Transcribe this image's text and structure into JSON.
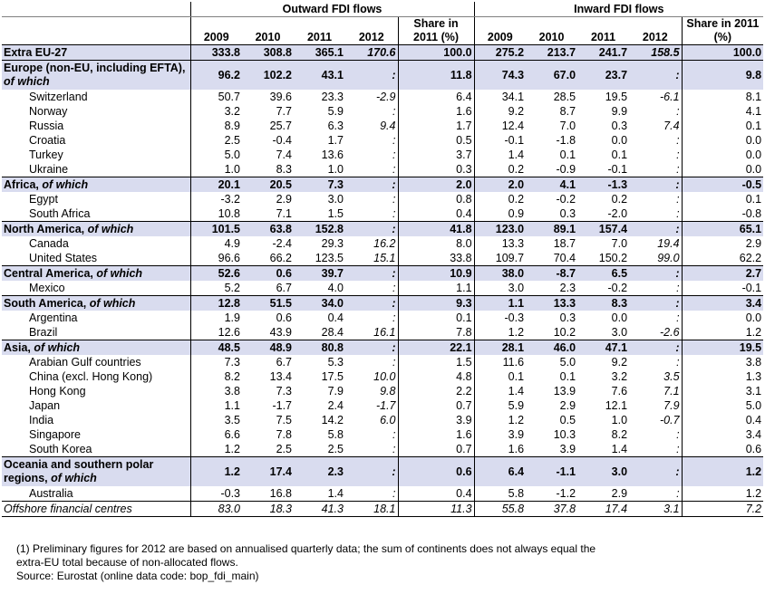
{
  "header": {
    "outward_group": "Outward FDI flows",
    "inward_group": "Inward FDI flows",
    "years": [
      "2009",
      "2010",
      "2011",
      "2012"
    ],
    "share_label": "Share in 2011 (%)"
  },
  "rows": [
    {
      "label": "Extra EU-27",
      "type": "total",
      "out": [
        "333.8",
        "308.8",
        "365.1",
        "170.6"
      ],
      "out_share": "100.0",
      "in": [
        "275.2",
        "213.7",
        "241.7",
        "158.5"
      ],
      "in_share": "100.0"
    },
    {
      "label": "Europe (non-EU, including EFTA), ",
      "suffix": "of which",
      "type": "band-tall",
      "out": [
        "96.2",
        "102.2",
        "43.1",
        ":"
      ],
      "out_share": "11.8",
      "in": [
        "74.3",
        "67.0",
        "23.7",
        ":"
      ],
      "in_share": "9.8"
    },
    {
      "label": "Switzerland",
      "type": "sub",
      "out": [
        "50.7",
        "39.6",
        "23.3",
        "-2.9"
      ],
      "out_share": "6.4",
      "in": [
        "34.1",
        "28.5",
        "19.5",
        "-6.1"
      ],
      "in_share": "8.1"
    },
    {
      "label": "Norway",
      "type": "sub",
      "out": [
        "3.2",
        "7.7",
        "5.9",
        ":"
      ],
      "out_share": "1.6",
      "in": [
        "9.2",
        "8.7",
        "9.9",
        ":"
      ],
      "in_share": "4.1"
    },
    {
      "label": "Russia",
      "type": "sub",
      "out": [
        "8.9",
        "25.7",
        "6.3",
        "9.4"
      ],
      "out_share": "1.7",
      "in": [
        "12.4",
        "7.0",
        "0.3",
        "7.4"
      ],
      "in_share": "0.1"
    },
    {
      "label": "Croatia",
      "type": "sub",
      "out": [
        "2.5",
        "-0.4",
        "1.7",
        ":"
      ],
      "out_share": "0.5",
      "in": [
        "-0.1",
        "-1.8",
        "0.0",
        ":"
      ],
      "in_share": "0.0"
    },
    {
      "label": "Turkey",
      "type": "sub",
      "out": [
        "5.0",
        "7.4",
        "13.6",
        ":"
      ],
      "out_share": "3.7",
      "in": [
        "1.4",
        "0.1",
        "0.1",
        ":"
      ],
      "in_share": "0.0"
    },
    {
      "label": "Ukraine",
      "type": "sub",
      "out": [
        "1.0",
        "8.3",
        "1.0",
        ":"
      ],
      "out_share": "0.3",
      "in": [
        "0.2",
        "-0.9",
        "-0.1",
        ":"
      ],
      "in_share": "0.0"
    },
    {
      "label": "Africa, ",
      "suffix": "of which",
      "type": "band",
      "out": [
        "20.1",
        "20.5",
        "7.3",
        ":"
      ],
      "out_share": "2.0",
      "in": [
        "2.0",
        "4.1",
        "-1.3",
        ":"
      ],
      "in_share": "-0.5"
    },
    {
      "label": "Egypt",
      "type": "sub",
      "out": [
        "-3.2",
        "2.9",
        "3.0",
        ":"
      ],
      "out_share": "0.8",
      "in": [
        "0.2",
        "-0.2",
        "0.2",
        ":"
      ],
      "in_share": "0.1"
    },
    {
      "label": "South Africa",
      "type": "sub",
      "out": [
        "10.8",
        "7.1",
        "1.5",
        ":"
      ],
      "out_share": "0.4",
      "in": [
        "0.9",
        "0.3",
        "-2.0",
        ":"
      ],
      "in_share": "-0.8"
    },
    {
      "label": "North America, ",
      "suffix": "of which",
      "type": "band",
      "out": [
        "101.5",
        "63.8",
        "152.8",
        ":"
      ],
      "out_share": "41.8",
      "in": [
        "123.0",
        "89.1",
        "157.4",
        ":"
      ],
      "in_share": "65.1"
    },
    {
      "label": "Canada",
      "type": "sub",
      "out": [
        "4.9",
        "-2.4",
        "29.3",
        "16.2"
      ],
      "out_share": "8.0",
      "in": [
        "13.3",
        "18.7",
        "7.0",
        "19.4"
      ],
      "in_share": "2.9"
    },
    {
      "label": "United States",
      "type": "sub",
      "out": [
        "96.6",
        "66.2",
        "123.5",
        "15.1"
      ],
      "out_share": "33.8",
      "in": [
        "109.7",
        "70.4",
        "150.2",
        "99.0"
      ],
      "in_share": "62.2"
    },
    {
      "label": "Central America, ",
      "suffix": "of which",
      "type": "band",
      "out": [
        "52.6",
        "0.6",
        "39.7",
        ":"
      ],
      "out_share": "10.9",
      "in": [
        "38.0",
        "-8.7",
        "6.5",
        ":"
      ],
      "in_share": "2.7"
    },
    {
      "label": "Mexico",
      "type": "sub",
      "out": [
        "5.2",
        "6.7",
        "4.0",
        ":"
      ],
      "out_share": "1.1",
      "in": [
        "3.0",
        "2.3",
        "-0.2",
        ":"
      ],
      "in_share": "-0.1"
    },
    {
      "label": "South America, ",
      "suffix": "of which",
      "type": "band",
      "out": [
        "12.8",
        "51.5",
        "34.0",
        ":"
      ],
      "out_share": "9.3",
      "in": [
        "1.1",
        "13.3",
        "8.3",
        ":"
      ],
      "in_share": "3.4"
    },
    {
      "label": "Argentina",
      "type": "sub",
      "out": [
        "1.9",
        "0.6",
        "0.4",
        ":"
      ],
      "out_share": "0.1",
      "in": [
        "-0.3",
        "0.3",
        "0.0",
        ":"
      ],
      "in_share": "0.0"
    },
    {
      "label": "Brazil",
      "type": "sub",
      "out": [
        "12.6",
        "43.9",
        "28.4",
        "16.1"
      ],
      "out_share": "7.8",
      "in": [
        "1.2",
        "10.2",
        "3.0",
        "-2.6"
      ],
      "in_share": "1.2"
    },
    {
      "label": "Asia, ",
      "suffix": "of which",
      "type": "band",
      "out": [
        "48.5",
        "48.9",
        "80.8",
        ":"
      ],
      "out_share": "22.1",
      "in": [
        "28.1",
        "46.0",
        "47.1",
        ":"
      ],
      "in_share": "19.5"
    },
    {
      "label": "Arabian Gulf countries",
      "type": "sub",
      "out": [
        "7.3",
        "6.7",
        "5.3",
        ":"
      ],
      "out_share": "1.5",
      "in": [
        "11.6",
        "5.0",
        "9.2",
        ":"
      ],
      "in_share": "3.8"
    },
    {
      "label": "China (excl. Hong Kong)",
      "type": "sub",
      "out": [
        "8.2",
        "13.4",
        "17.5",
        "10.0"
      ],
      "out_share": "4.8",
      "in": [
        "0.1",
        "0.1",
        "3.2",
        "3.5"
      ],
      "in_share": "1.3"
    },
    {
      "label": "Hong Kong",
      "type": "sub",
      "out": [
        "3.8",
        "7.3",
        "7.9",
        "9.8"
      ],
      "out_share": "2.2",
      "in": [
        "1.4",
        "13.9",
        "7.6",
        "7.1"
      ],
      "in_share": "3.1"
    },
    {
      "label": "Japan",
      "type": "sub",
      "out": [
        "1.1",
        "-1.7",
        "2.4",
        "-1.7"
      ],
      "out_share": "0.7",
      "in": [
        "5.9",
        "2.9",
        "12.1",
        "7.9"
      ],
      "in_share": "5.0"
    },
    {
      "label": "India",
      "type": "sub",
      "out": [
        "3.5",
        "7.5",
        "14.2",
        "6.0"
      ],
      "out_share": "3.9",
      "in": [
        "1.2",
        "0.5",
        "1.0",
        "-0.7"
      ],
      "in_share": "0.4"
    },
    {
      "label": "Singapore",
      "type": "sub",
      "out": [
        "6.6",
        "7.8",
        "5.8",
        ":"
      ],
      "out_share": "1.6",
      "in": [
        "3.9",
        "10.3",
        "8.2",
        ":"
      ],
      "in_share": "3.4"
    },
    {
      "label": "South Korea",
      "type": "sub",
      "out": [
        "1.2",
        "2.5",
        "2.5",
        ":"
      ],
      "out_share": "0.7",
      "in": [
        "1.6",
        "3.9",
        "1.4",
        ":"
      ],
      "in_share": "0.6"
    },
    {
      "label": "Oceania and southern polar regions, ",
      "suffix": "of which",
      "type": "band-tall",
      "out": [
        "1.2",
        "17.4",
        "2.3",
        ":"
      ],
      "out_share": "0.6",
      "in": [
        "6.4",
        "-1.1",
        "3.0",
        ":"
      ],
      "in_share": "1.2"
    },
    {
      "label": "Australia",
      "type": "sub",
      "out": [
        "-0.3",
        "16.8",
        "1.4",
        ":"
      ],
      "out_share": "0.4",
      "in": [
        "5.8",
        "-1.2",
        "2.9",
        ":"
      ],
      "in_share": "1.2"
    },
    {
      "label": "Offshore financial centres",
      "type": "last",
      "out": [
        "83.0",
        "18.3",
        "41.3",
        "18.1"
      ],
      "out_share": "11.3",
      "in": [
        "55.8",
        "37.8",
        "17.4",
        "3.1"
      ],
      "in_share": "7.2"
    }
  ],
  "footnotes": {
    "line1": "(1) Preliminary figures for 2012 are based on annualised quarterly data; the sum of continents does not always equal the",
    "line2": "extra-EU total because of non-allocated flows.",
    "line3": "Source: Eurostat (online data code: bop_fdi_main)"
  }
}
